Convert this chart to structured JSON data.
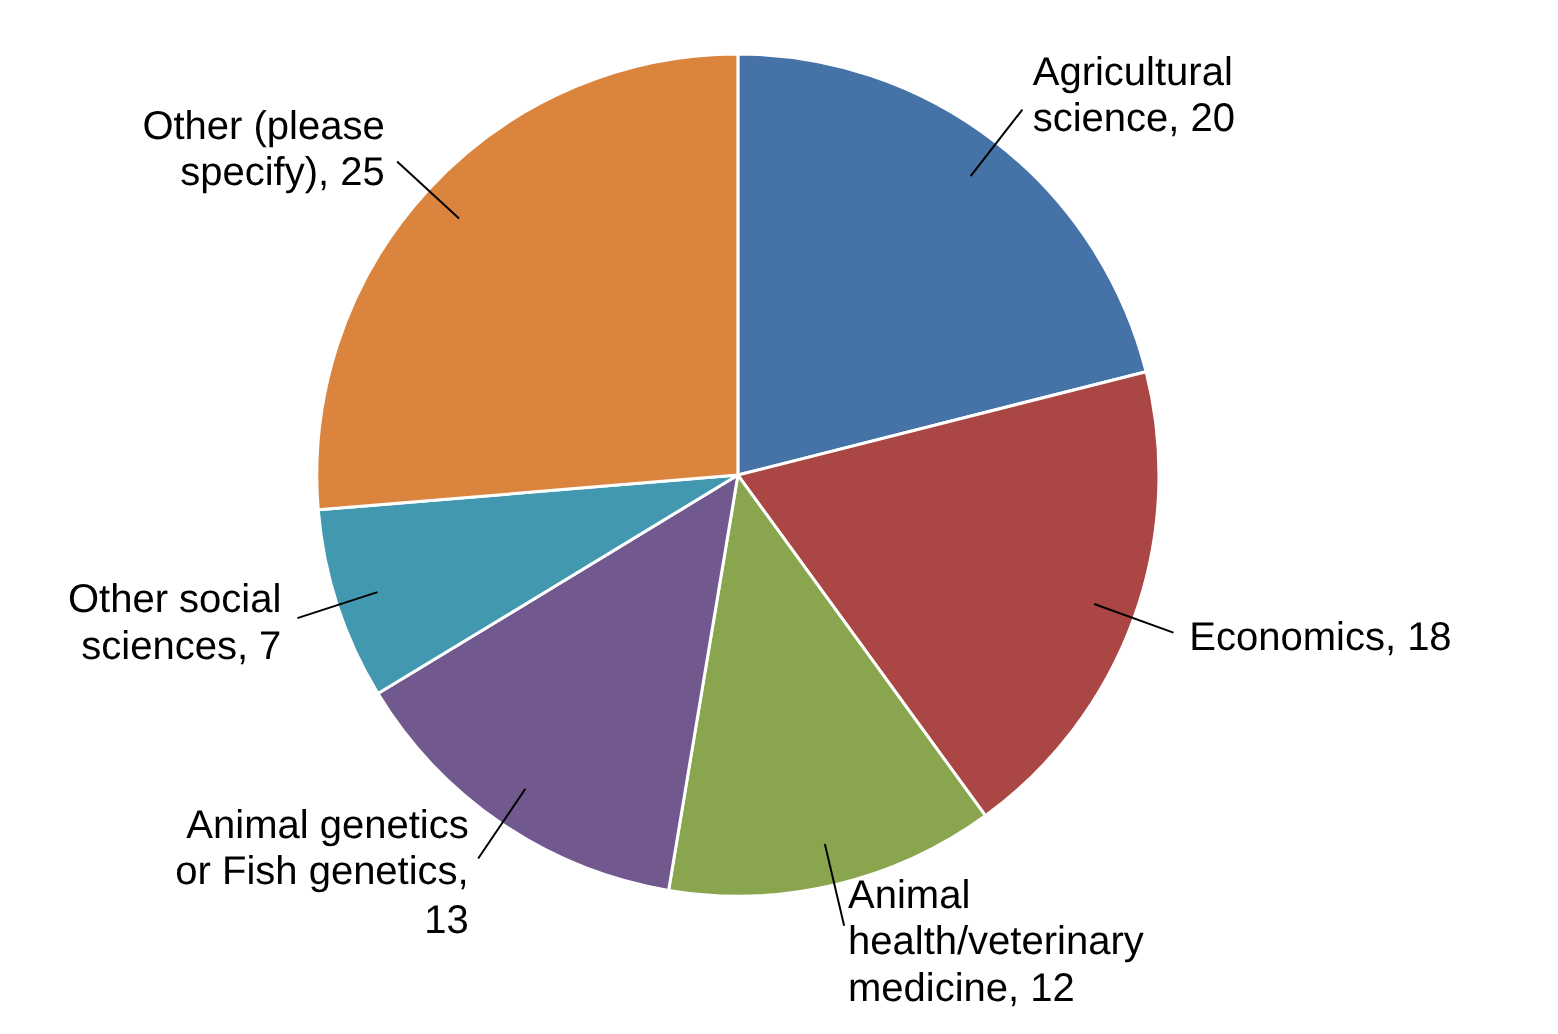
{
  "chart_data": {
    "type": "pie",
    "categories": [
      "Agricultural science, 20",
      "Economics, 18",
      "Animal health/veterinary medicine, 12",
      "Animal genetics or Fish genetics, 13",
      "Other social sciences, 7",
      "Other (please specify), 25"
    ],
    "values": [
      20,
      18,
      12,
      13,
      7,
      25
    ],
    "colors": [
      "#4572a7",
      "#aa4643",
      "#89a54e",
      "#71588f",
      "#4198af",
      "#db843d"
    ]
  }
}
